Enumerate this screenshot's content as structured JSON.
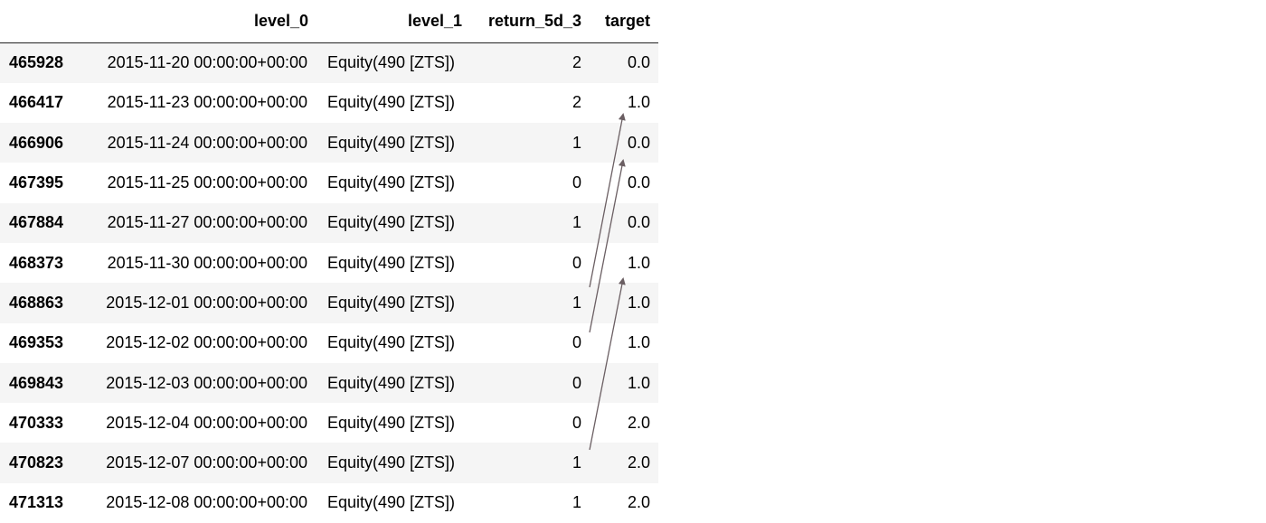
{
  "table": {
    "columns": {
      "index": "",
      "level_0": "level_0",
      "level_1": "level_1",
      "return": "return_5d_3",
      "target": "target"
    },
    "rows": [
      {
        "index": "465928",
        "level_0": "2015-11-20 00:00:00+00:00",
        "level_1": "Equity(490 [ZTS])",
        "return": "2",
        "target": "0.0"
      },
      {
        "index": "466417",
        "level_0": "2015-11-23 00:00:00+00:00",
        "level_1": "Equity(490 [ZTS])",
        "return": "2",
        "target": "1.0"
      },
      {
        "index": "466906",
        "level_0": "2015-11-24 00:00:00+00:00",
        "level_1": "Equity(490 [ZTS])",
        "return": "1",
        "target": "0.0"
      },
      {
        "index": "467395",
        "level_0": "2015-11-25 00:00:00+00:00",
        "level_1": "Equity(490 [ZTS])",
        "return": "0",
        "target": "0.0"
      },
      {
        "index": "467884",
        "level_0": "2015-11-27 00:00:00+00:00",
        "level_1": "Equity(490 [ZTS])",
        "return": "1",
        "target": "0.0"
      },
      {
        "index": "468373",
        "level_0": "2015-11-30 00:00:00+00:00",
        "level_1": "Equity(490 [ZTS])",
        "return": "0",
        "target": "1.0"
      },
      {
        "index": "468863",
        "level_0": "2015-12-01 00:00:00+00:00",
        "level_1": "Equity(490 [ZTS])",
        "return": "1",
        "target": "1.0"
      },
      {
        "index": "469353",
        "level_0": "2015-12-02 00:00:00+00:00",
        "level_1": "Equity(490 [ZTS])",
        "return": "0",
        "target": "1.0"
      },
      {
        "index": "469843",
        "level_0": "2015-12-03 00:00:00+00:00",
        "level_1": "Equity(490 [ZTS])",
        "return": "0",
        "target": "1.0"
      },
      {
        "index": "470333",
        "level_0": "2015-12-04 00:00:00+00:00",
        "level_1": "Equity(490 [ZTS])",
        "return": "0",
        "target": "2.0"
      },
      {
        "index": "470823",
        "level_0": "2015-12-07 00:00:00+00:00",
        "level_1": "Equity(490 [ZTS])",
        "return": "1",
        "target": "2.0"
      },
      {
        "index": "471313",
        "level_0": "2015-12-08 00:00:00+00:00",
        "level_1": "Equity(490 [ZTS])",
        "return": "1",
        "target": "2.0"
      }
    ]
  },
  "annotations": {
    "arrow_color": "#6b5f63",
    "arrows": [
      {
        "from_row": 5,
        "to_row": 1
      },
      {
        "from_row": 7,
        "to_row": 2
      },
      {
        "from_row": 9,
        "to_row": 5
      }
    ]
  }
}
